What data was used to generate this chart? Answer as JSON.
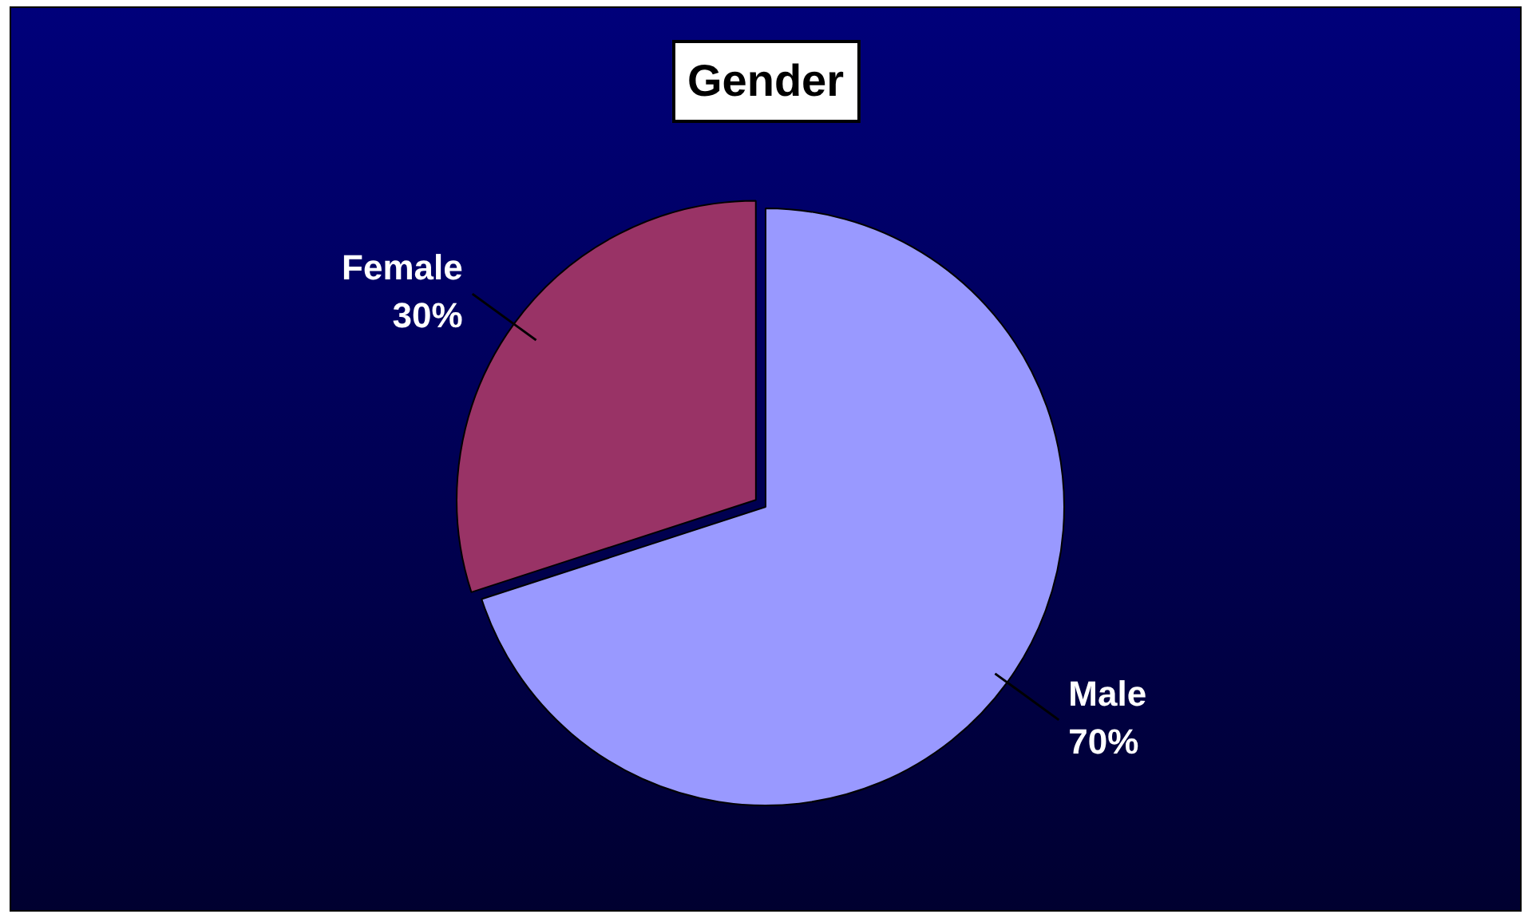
{
  "chart_data": {
    "type": "pie",
    "title": "Gender",
    "categories": [
      "Male",
      "Female"
    ],
    "values": [
      70,
      30
    ],
    "colors": [
      "#9999ff",
      "#993366"
    ],
    "value_labels": [
      "70%",
      "30%"
    ],
    "legend": false
  }
}
